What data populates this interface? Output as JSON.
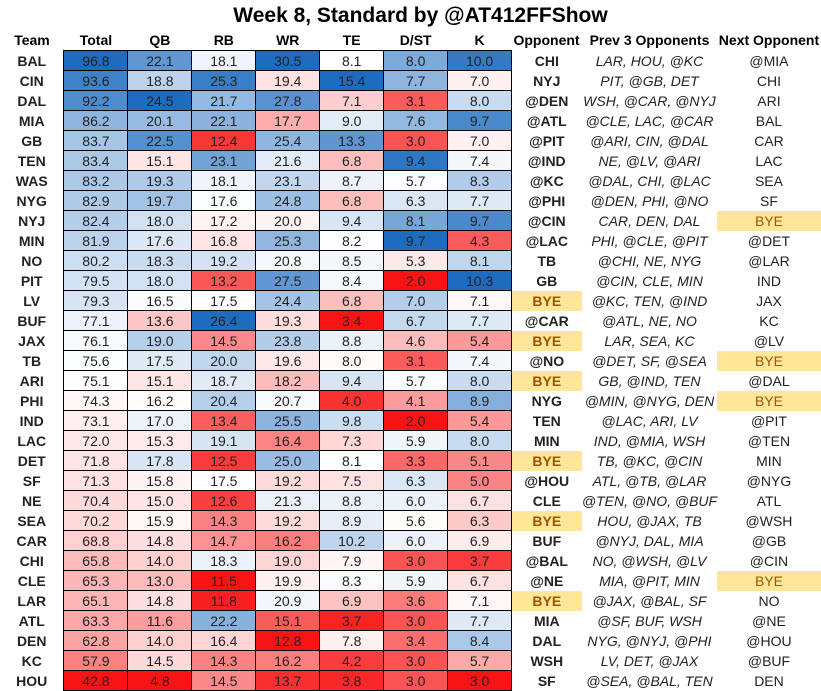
{
  "title": "Week 8, Standard by @AT412FFShow",
  "chart_data": {
    "type": "table",
    "title": "Week 8, Standard by @AT412FFShow",
    "columns": [
      "Team",
      "Total",
      "QB",
      "RB",
      "WR",
      "TE",
      "D/ST",
      "K",
      "Opponent",
      "Prev  3 Opponents",
      "Next Opponent"
    ],
    "color_scale": {
      "low": "#F81414",
      "mid": "#FFFFFF",
      "high": "#1E6CBF"
    },
    "bye_highlight": "#FFE699",
    "rows": [
      [
        "BAL",
        "96.8",
        "22.1",
        "18.1",
        "30.5",
        "8.1",
        "8.0",
        "10.0",
        "CHI",
        "LAR, HOU, @KC",
        "@MIA"
      ],
      [
        "CIN",
        "93.6",
        "18.8",
        "25.3",
        "19.4",
        "15.4",
        "7.7",
        "7.0",
        "NYJ",
        "PIT, @GB, DET",
        "CHI"
      ],
      [
        "DAL",
        "92.2",
        "24.5",
        "21.7",
        "27.8",
        "7.1",
        "3.1",
        "8.0",
        "@DEN",
        "WSH, @CAR, @NYJ",
        "ARI"
      ],
      [
        "MIA",
        "86.2",
        "20.1",
        "22.1",
        "17.7",
        "9.0",
        "7.6",
        "9.7",
        "@ATL",
        "@CLE, LAC, @CAR",
        "BAL"
      ],
      [
        "GB",
        "83.7",
        "22.5",
        "12.4",
        "25.4",
        "13.3",
        "3.0",
        "7.0",
        "@PIT",
        "@ARI, CIN, @DAL",
        "CAR"
      ],
      [
        "TEN",
        "83.4",
        "15.1",
        "23.1",
        "21.6",
        "6.8",
        "9.4",
        "7.4",
        "@IND",
        "NE, @LV, @ARI",
        "LAC"
      ],
      [
        "WAS",
        "83.2",
        "19.3",
        "18.1",
        "23.1",
        "8.7",
        "5.7",
        "8.3",
        "@KC",
        "@DAL, CHI, @LAC",
        "SEA"
      ],
      [
        "NYG",
        "82.9",
        "19.7",
        "17.6",
        "24.8",
        "6.8",
        "6.3",
        "7.7",
        "@PHI",
        "@DEN, PHI, @NO",
        "SF"
      ],
      [
        "NYJ",
        "82.4",
        "18.0",
        "17.2",
        "20.0",
        "9.4",
        "8.1",
        "9.7",
        "@CIN",
        "CAR, DEN, DAL",
        "BYE"
      ],
      [
        "MIN",
        "81.9",
        "17.6",
        "16.8",
        "25.3",
        "8.2",
        "9.7",
        "4.3",
        "@LAC",
        "PHI, @CLE, @PIT",
        "@DET"
      ],
      [
        "NO",
        "80.2",
        "18.3",
        "19.2",
        "20.8",
        "8.5",
        "5.3",
        "8.1",
        "TB",
        "@CHI, NE, NYG",
        "@LAR"
      ],
      [
        "PIT",
        "79.5",
        "18.0",
        "13.2",
        "27.5",
        "8.4",
        "2.0",
        "10.3",
        "GB",
        "@CIN, CLE, MIN",
        "IND"
      ],
      [
        "LV",
        "79.3",
        "16.5",
        "17.5",
        "24.4",
        "6.8",
        "7.0",
        "7.1",
        "BYE",
        "@KC, TEN, @IND",
        "JAX"
      ],
      [
        "BUF",
        "77.1",
        "13.6",
        "26.4",
        "19.3",
        "3.4",
        "6.7",
        "7.7",
        "@CAR",
        "@ATL, NE, NO",
        "KC"
      ],
      [
        "JAX",
        "76.1",
        "19.0",
        "14.5",
        "23.8",
        "8.8",
        "4.6",
        "5.4",
        "BYE",
        "LAR, SEA, KC",
        "@LV"
      ],
      [
        "TB",
        "75.6",
        "17.5",
        "20.0",
        "19.6",
        "8.0",
        "3.1",
        "7.4",
        "@NO",
        "@DET, SF, @SEA",
        "BYE"
      ],
      [
        "ARI",
        "75.1",
        "15.1",
        "18.7",
        "18.2",
        "9.4",
        "5.7",
        "8.0",
        "BYE",
        "GB, @IND, TEN",
        "@DAL"
      ],
      [
        "PHI",
        "74.3",
        "16.2",
        "20.4",
        "20.7",
        "4.0",
        "4.1",
        "8.9",
        "NYG",
        "@MIN, @NYG, DEN",
        "BYE"
      ],
      [
        "IND",
        "73.1",
        "17.0",
        "13.4",
        "25.5",
        "9.8",
        "2.0",
        "5.4",
        "TEN",
        "@LAC, ARI, LV",
        "@PIT"
      ],
      [
        "LAC",
        "72.0",
        "15.3",
        "19.1",
        "16.4",
        "7.3",
        "5.9",
        "8.0",
        "MIN",
        "IND, @MIA, WSH",
        "@TEN"
      ],
      [
        "DET",
        "71.8",
        "17.8",
        "12.5",
        "25.0",
        "8.1",
        "3.3",
        "5.1",
        "BYE",
        "TB, @KC, @CIN",
        "MIN"
      ],
      [
        "SF",
        "71.3",
        "15.8",
        "17.5",
        "19.2",
        "7.5",
        "6.3",
        "5.0",
        "@HOU",
        "ATL, @TB, @LAR",
        "@NYG"
      ],
      [
        "NE",
        "70.4",
        "15.0",
        "12.6",
        "21.3",
        "8.8",
        "6.0",
        "6.7",
        "CLE",
        "@TEN, @NO, @BUF",
        "ATL"
      ],
      [
        "SEA",
        "70.2",
        "15.9",
        "14.3",
        "19.2",
        "8.9",
        "5.6",
        "6.3",
        "BYE",
        "HOU, @JAX, TB",
        "@WSH"
      ],
      [
        "CAR",
        "68.8",
        "14.8",
        "14.7",
        "16.2",
        "10.2",
        "6.0",
        "6.9",
        "BUF",
        "@NYJ, DAL, MIA",
        "@GB"
      ],
      [
        "CHI",
        "65.8",
        "14.0",
        "18.3",
        "19.0",
        "7.9",
        "3.0",
        "3.7",
        "@BAL",
        "NO, @WSH, @LV",
        "@CIN"
      ],
      [
        "CLE",
        "65.3",
        "13.0",
        "11.5",
        "19.9",
        "8.3",
        "5.9",
        "6.7",
        "@NE",
        "MIA, @PIT, MIN",
        "BYE"
      ],
      [
        "LAR",
        "65.1",
        "14.8",
        "11.8",
        "20.9",
        "6.9",
        "3.6",
        "7.1",
        "BYE",
        "@JAX, @BAL, SF",
        "NO"
      ],
      [
        "ATL",
        "63.3",
        "11.6",
        "22.2",
        "15.1",
        "3.7",
        "3.0",
        "7.7",
        "MIA",
        "@SF, BUF, WSH",
        "@NE"
      ],
      [
        "DEN",
        "62.8",
        "14.0",
        "16.4",
        "12.8",
        "7.8",
        "3.4",
        "8.4",
        "DAL",
        "NYG, @NYJ, @PHI",
        "@HOU"
      ],
      [
        "KC",
        "57.9",
        "14.5",
        "14.3",
        "16.2",
        "4.2",
        "3.0",
        "5.7",
        "WSH",
        "LV, DET, @JAX",
        "@BUF"
      ],
      [
        "HOU",
        "42.8",
        "4.8",
        "14.5",
        "13.7",
        "3.8",
        "3.0",
        "3.0",
        "SF",
        "@SEA, @BAL, TEN",
        "DEN"
      ]
    ]
  }
}
